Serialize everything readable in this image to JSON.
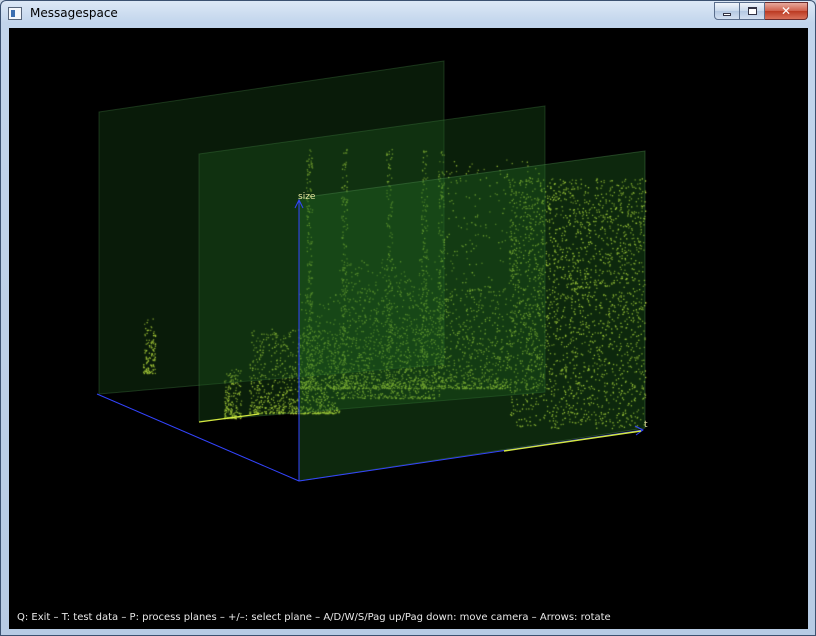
{
  "window": {
    "title": "Messagespace",
    "icon": "app-window-icon",
    "buttons": {
      "minimize_icon": "minimize-icon",
      "maximize_icon": "maximize-icon",
      "close_icon": "close-icon",
      "close_glyph": "✕"
    }
  },
  "scene": {
    "axis_y_label": "size",
    "axis_x_label": "t",
    "planes": 3,
    "colors": {
      "background": "#000000",
      "axis": "#3344ff",
      "plane_fill": "#1e5a1e",
      "points": "#e4ff44"
    }
  },
  "status": {
    "help_text": "Q: Exit – T: test data – P: process planes – +/–: select plane – A/D/W/S/Pag up/Pag down: move camera – Arrows: rotate"
  }
}
